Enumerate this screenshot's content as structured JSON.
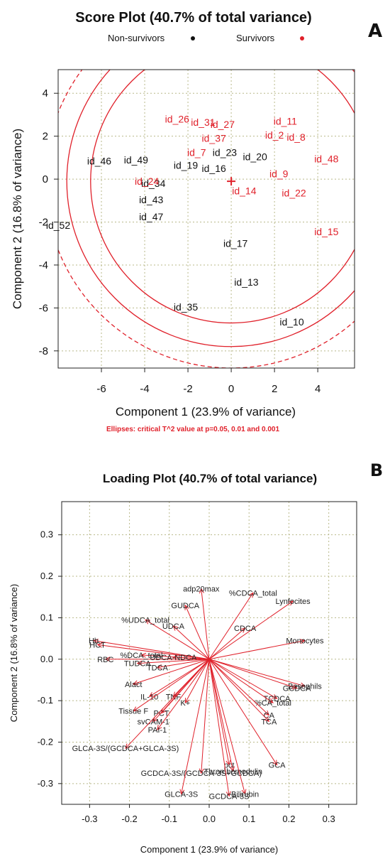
{
  "colors": {
    "survivor": "#e0202a",
    "nonsurvivor": "#111111",
    "axis": "#222222",
    "grid": "#b9b98a"
  },
  "chart_data": [
    {
      "type": "scatter",
      "panel": "A",
      "title": "Score Plot (40.7% of total variance)",
      "xlabel": "Component 1 (23.9% of variance)",
      "ylabel": "Component 2 (16.8% of variance)",
      "xlim": [
        -8.0,
        5.7
      ],
      "ylim": [
        -8.8,
        5.1
      ],
      "x_ticks": [
        -6,
        -4,
        -2,
        0,
        2,
        4
      ],
      "y_ticks": [
        -8,
        -6,
        -4,
        -2,
        0,
        2,
        4
      ],
      "grid": true,
      "legend_position": "top",
      "note": "Ellipses: critical T^2 value at p=0.05, 0.01 and 0.001",
      "legend": [
        {
          "name": "Non-survivors",
          "color": "#111111"
        },
        {
          "name": "Survivors",
          "color": "#e0202a"
        }
      ],
      "center_marker": [
        0,
        -0.1
      ],
      "series": [
        {
          "name": "Non-survivors",
          "color": "#111111",
          "points": [
            {
              "label": "id_46",
              "x": -6.1,
              "y": 0.85
            },
            {
              "label": "id_49",
              "x": -4.4,
              "y": 0.9
            },
            {
              "label": "id_34",
              "x": -3.6,
              "y": -0.2
            },
            {
              "label": "id_43",
              "x": -3.7,
              "y": -0.95
            },
            {
              "label": "id_47",
              "x": -3.7,
              "y": -1.75
            },
            {
              "label": "id_52",
              "x": -8.0,
              "y": -2.15
            },
            {
              "label": "id_19",
              "x": -2.1,
              "y": 0.65
            },
            {
              "label": "id_16",
              "x": -0.8,
              "y": 0.5
            },
            {
              "label": "id_23",
              "x": -0.3,
              "y": 1.25
            },
            {
              "label": "id_20",
              "x": 1.1,
              "y": 1.05
            },
            {
              "label": "id_17",
              "x": 0.2,
              "y": -3.0
            },
            {
              "label": "id_13",
              "x": 0.7,
              "y": -4.8
            },
            {
              "label": "id_35",
              "x": -2.1,
              "y": -5.95
            },
            {
              "label": "id_10",
              "x": 2.8,
              "y": -6.65
            }
          ]
        },
        {
          "name": "Survivors",
          "color": "#e0202a",
          "points": [
            {
              "label": "id_26",
              "x": -2.5,
              "y": 2.8
            },
            {
              "label": "id_31",
              "x": -1.3,
              "y": 2.65
            },
            {
              "label": "id_27",
              "x": -0.4,
              "y": 2.55
            },
            {
              "label": "id_37",
              "x": -0.8,
              "y": 1.9
            },
            {
              "label": "id_7",
              "x": -1.6,
              "y": 1.25
            },
            {
              "label": "id_24",
              "x": -3.9,
              "y": -0.1
            },
            {
              "label": "id_14",
              "x": 0.6,
              "y": -0.55
            },
            {
              "label": "id_11",
              "x": 2.5,
              "y": 2.7
            },
            {
              "label": "id_2",
              "x": 2.0,
              "y": 2.05
            },
            {
              "label": "id_8",
              "x": 3.0,
              "y": 1.95
            },
            {
              "label": "id_9",
              "x": 2.2,
              "y": 0.25
            },
            {
              "label": "id_22",
              "x": 2.9,
              "y": -0.65
            },
            {
              "label": "id_48",
              "x": 4.4,
              "y": 0.95
            },
            {
              "label": "id_15",
              "x": 4.4,
              "y": -2.45
            }
          ]
        }
      ]
    },
    {
      "type": "scatter",
      "panel": "B",
      "title": "Loading Plot (40.7% of total variance)",
      "xlabel": "Component 1 (23.9% of variance)",
      "ylabel": "Component 2 (16.8% of variance)",
      "xlim": [
        -0.37,
        0.37
      ],
      "ylim": [
        -0.35,
        0.38
      ],
      "x_ticks": [
        -0.3,
        -0.2,
        -0.1,
        0.0,
        0.1,
        0.2,
        0.3
      ],
      "y_ticks": [
        -0.3,
        -0.2,
        -0.1,
        0.0,
        0.1,
        0.2,
        0.3
      ],
      "grid": true,
      "arrows_from_origin": true,
      "loadings": [
        {
          "label": "adp20max",
          "x": -0.02,
          "y": 0.17
        },
        {
          "label": "%CDCA_total",
          "x": 0.11,
          "y": 0.16
        },
        {
          "label": "Lynfocites",
          "x": 0.21,
          "y": 0.14
        },
        {
          "label": "GUDCA",
          "x": -0.06,
          "y": 0.13
        },
        {
          "label": "%UDCA_total",
          "x": -0.16,
          "y": 0.095
        },
        {
          "label": "UDCA",
          "x": -0.09,
          "y": 0.08
        },
        {
          "label": "CDCA",
          "x": 0.09,
          "y": 0.075
        },
        {
          "label": "Monocytes",
          "x": 0.24,
          "y": 0.045
        },
        {
          "label": "Hb",
          "x": -0.29,
          "y": 0.045
        },
        {
          "label": "HCT",
          "x": -0.28,
          "y": 0.035
        },
        {
          "label": "RBC",
          "x": -0.26,
          "y": 0.0
        },
        {
          "label": "%DCA_total",
          "x": -0.17,
          "y": 0.01
        },
        {
          "label": "UDCA-NDCA",
          "x": -0.09,
          "y": 0.005
        },
        {
          "label": "TUDCA",
          "x": -0.18,
          "y": -0.01
        },
        {
          "label": "TDCA",
          "x": -0.13,
          "y": -0.02
        },
        {
          "label": "Alact",
          "x": -0.19,
          "y": -0.06
        },
        {
          "label": "Basophils",
          "x": 0.24,
          "y": -0.065
        },
        {
          "label": "GCDCA",
          "x": 0.22,
          "y": -0.07
        },
        {
          "label": "TCDCA",
          "x": 0.17,
          "y": -0.095
        },
        {
          "label": "%CA_total",
          "x": 0.16,
          "y": -0.105
        },
        {
          "label": "IL-10",
          "x": -0.15,
          "y": -0.09
        },
        {
          "label": "TNF",
          "x": -0.09,
          "y": -0.09
        },
        {
          "label": "K+",
          "x": -0.06,
          "y": -0.105
        },
        {
          "label": "Tissue F",
          "x": -0.19,
          "y": -0.125
        },
        {
          "label": "PCT",
          "x": -0.12,
          "y": -0.13
        },
        {
          "label": "CA",
          "x": 0.15,
          "y": -0.135
        },
        {
          "label": "svCAM-1",
          "x": -0.14,
          "y": -0.15
        },
        {
          "label": "TCA",
          "x": 0.15,
          "y": -0.15
        },
        {
          "label": "PAI-1",
          "x": -0.13,
          "y": -0.17
        },
        {
          "label": "GLCA-3S/(GCDCA+GLCA-3S)",
          "x": -0.21,
          "y": -0.215
        },
        {
          "label": "GCA",
          "x": 0.17,
          "y": -0.255
        },
        {
          "label": "pct",
          "x": 0.05,
          "y": -0.255
        },
        {
          "label": "Thrombomodulin",
          "x": 0.06,
          "y": -0.27
        },
        {
          "label": "GCDCA-3S/(GCDCA-3S+GCDCA)",
          "x": -0.02,
          "y": -0.275
        },
        {
          "label": "GLCA-3S",
          "x": -0.07,
          "y": -0.325
        },
        {
          "label": "GCDCA-3S",
          "x": 0.05,
          "y": -0.33
        },
        {
          "label": "Bilirubin",
          "x": 0.09,
          "y": -0.325
        }
      ]
    }
  ]
}
